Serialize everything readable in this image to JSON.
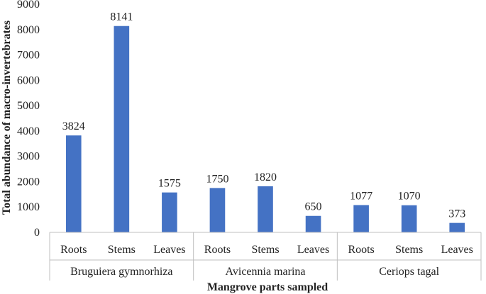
{
  "chart_data": {
    "type": "bar",
    "ylabel": "Total abundance of macro-invertebrates",
    "xlabel": "Mangrove parts sampled",
    "ylim": [
      0,
      9000
    ],
    "yticks": [
      0,
      1000,
      2000,
      3000,
      4000,
      5000,
      6000,
      7000,
      8000,
      9000
    ],
    "grid": false,
    "legend": "none",
    "bar_color": "#4472C4",
    "groups": [
      {
        "name": "Bruguiera gymnorhiza",
        "categories": [
          "Roots",
          "Stems",
          "Leaves"
        ],
        "values": [
          3824,
          8141,
          1575
        ]
      },
      {
        "name": "Avicennia marina",
        "categories": [
          "Roots",
          "Stems",
          "Leaves"
        ],
        "values": [
          1750,
          1820,
          650
        ]
      },
      {
        "name": "Ceriops tagal",
        "categories": [
          "Roots",
          "Stems",
          "Leaves"
        ],
        "values": [
          1077,
          1070,
          373
        ]
      }
    ]
  }
}
